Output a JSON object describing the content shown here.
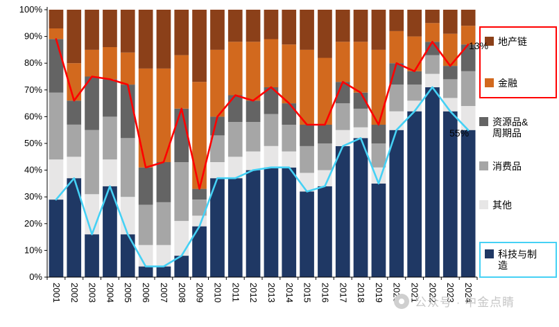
{
  "chart_data": {
    "type": "bar",
    "subtype": "stacked-100pct-with-lines",
    "title": "",
    "xlabel": "",
    "ylabel": "",
    "ylim": [
      0,
      100
    ],
    "y_ticks": [
      "0%",
      "10%",
      "20%",
      "30%",
      "40%",
      "50%",
      "60%",
      "70%",
      "80%",
      "90%",
      "100%"
    ],
    "x": [
      "2001",
      "2002",
      "2003",
      "2004",
      "2005",
      "2006",
      "2007",
      "2008",
      "2009",
      "2010",
      "2011",
      "2012",
      "2013",
      "2014",
      "2015",
      "2016",
      "2017",
      "2018",
      "2019",
      "2020",
      "2021",
      "2022",
      "2023",
      "2024"
    ],
    "series": [
      {
        "name": "科技与制造",
        "color": "#1F3864",
        "values": [
          29,
          37,
          16,
          34,
          16,
          4,
          4,
          8,
          19,
          37,
          37,
          40,
          41,
          41,
          32,
          34,
          49,
          52,
          35,
          55,
          62,
          71,
          62,
          55
        ]
      },
      {
        "name": "其他",
        "color": "#E7E6E6",
        "values": [
          15,
          8,
          15,
          10,
          14,
          8,
          8,
          13,
          4,
          6,
          8,
          7,
          8,
          6,
          7,
          6,
          6,
          4,
          6,
          7,
          4,
          5,
          5,
          9
        ]
      },
      {
        "name": "消费品",
        "color": "#A6A6A6",
        "values": [
          25,
          12,
          24,
          16,
          22,
          15,
          16,
          22,
          6,
          10,
          13,
          11,
          12,
          10,
          10,
          10,
          10,
          7,
          9,
          10,
          6,
          7,
          7,
          13
        ]
      },
      {
        "name": "资源品&周期品",
        "color": "#646464",
        "values": [
          20,
          9,
          20,
          14,
          20,
          14,
          15,
          20,
          4,
          7,
          10,
          8,
          10,
          8,
          8,
          7,
          8,
          6,
          7,
          8,
          5,
          5,
          5,
          10
        ]
      },
      {
        "name": "金融",
        "color": "#D2691E",
        "values": [
          4,
          14,
          10,
          12,
          12,
          37,
          35,
          20,
          40,
          25,
          20,
          22,
          18,
          22,
          28,
          25,
          15,
          19,
          28,
          12,
          13,
          7,
          12,
          7
        ]
      },
      {
        "name": "地产链",
        "color": "#8B4019",
        "values": [
          7,
          20,
          15,
          14,
          16,
          22,
          22,
          17,
          27,
          15,
          12,
          12,
          11,
          13,
          15,
          18,
          12,
          12,
          15,
          8,
          10,
          5,
          9,
          6
        ]
      }
    ],
    "lines": [
      {
        "id": "red-line",
        "color": "#FF0000",
        "values": [
          89,
          66,
          75,
          74,
          72,
          41,
          43,
          63,
          33,
          60,
          68,
          66,
          71,
          65,
          57,
          57,
          73,
          69,
          57,
          80,
          77,
          88,
          79,
          87
        ]
      },
      {
        "id": "cyan-line",
        "color": "#45D1F5",
        "values": [
          29,
          37,
          16,
          34,
          16,
          4,
          4,
          8,
          19,
          37,
          37,
          40,
          41,
          41,
          32,
          34,
          49,
          52,
          35,
          55,
          62,
          71,
          62,
          55
        ]
      }
    ],
    "annotations": [
      {
        "text": "13%"
      },
      {
        "text": "55%"
      }
    ],
    "legend_position": "right",
    "grid": false
  },
  "legend": {
    "items": [
      {
        "label": "地产链",
        "color": "#8B4019"
      },
      {
        "label": "金融",
        "color": "#D2691E"
      },
      {
        "label": "资源品&周期品",
        "color": "#646464"
      },
      {
        "label": "消费品",
        "color": "#A6A6A6"
      },
      {
        "label": "其他",
        "color": "#E7E6E6"
      },
      {
        "label": "科技与制造",
        "color": "#1F3864"
      }
    ],
    "highlight": {
      "red_box": "#FF0000",
      "cyan_box": "#45D1F5"
    }
  },
  "watermark": {
    "text": "公众号 · 中金点睛"
  }
}
